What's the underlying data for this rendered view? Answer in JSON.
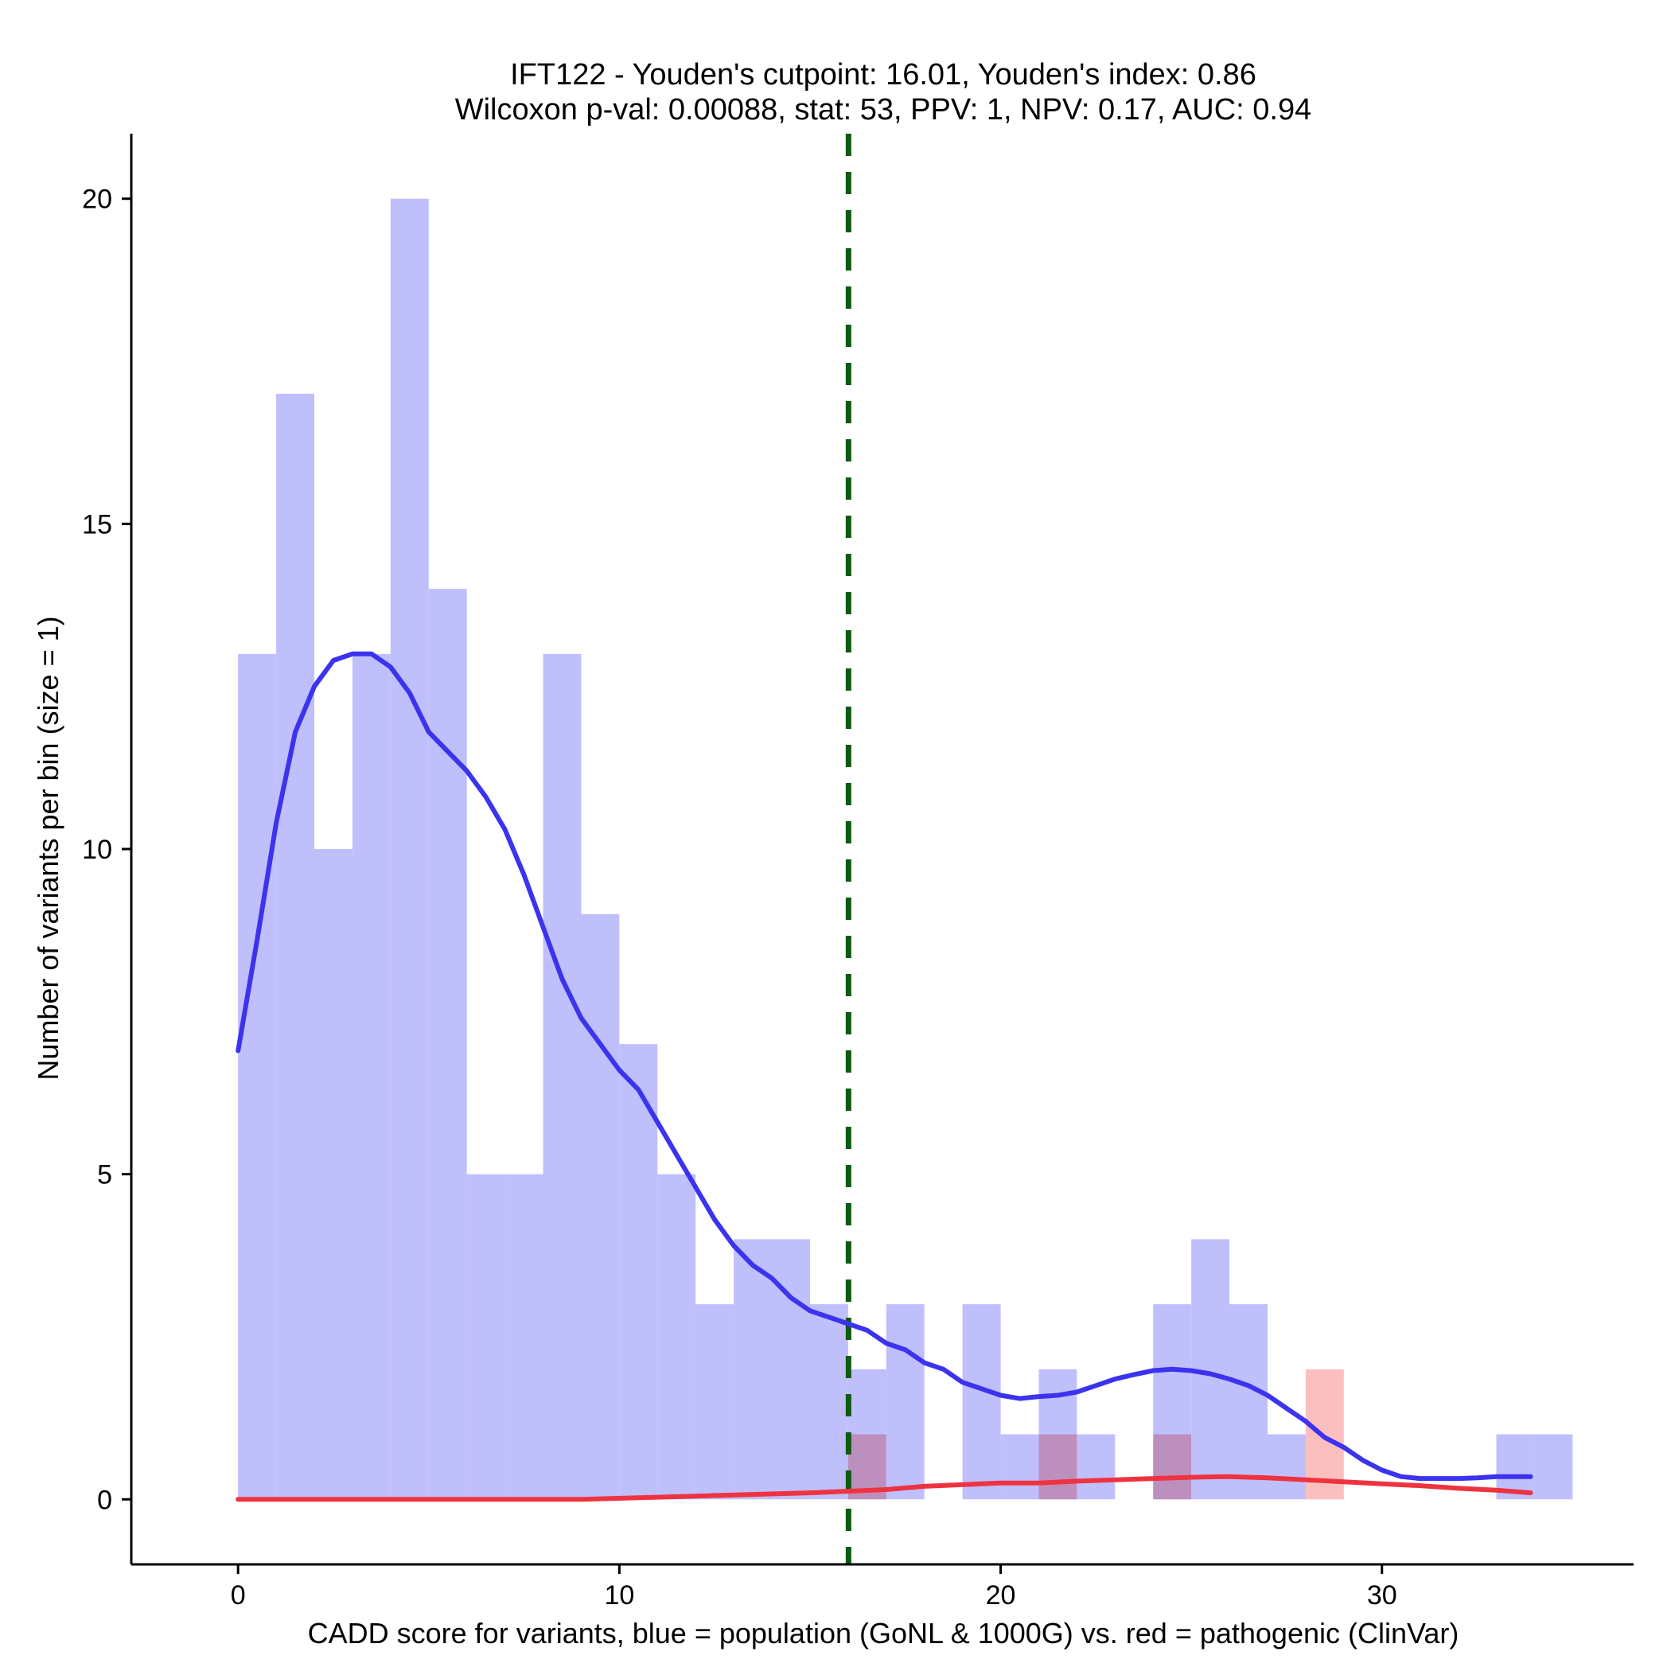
{
  "chart_data": {
    "type": "bar",
    "title_line1": "IFT122 - Youden's cutpoint: 16.01, Youden's index: 0.86",
    "title_line2": "Wilcoxon p-val: 0.00088, stat: 53, PPV: 1, NPV: 0.17, AUC: 0.94",
    "xlabel": "CADD score for variants, blue = population (GoNL & 1000G) vs. red = pathogenic (ClinVar)",
    "ylabel": "Number of variants per bin (size = 1)",
    "xlim": [
      -2.8,
      36.6
    ],
    "ylim": [
      -1,
      21
    ],
    "xticks": [
      0,
      10,
      20,
      30
    ],
    "yticks": [
      0,
      5,
      10,
      15,
      20
    ],
    "bin_size": 1,
    "cutpoint": 16.01,
    "colors": {
      "population_bar": "#bfbffc",
      "pathogenic_bar": "#fcbfbf",
      "population_line": "#3b33ee",
      "pathogenic_line": "#ee3340",
      "cutpoint_line": "#0d5a10"
    },
    "series": [
      {
        "name": "population",
        "bins": [
          {
            "x0": 0,
            "v": 13
          },
          {
            "x0": 1,
            "v": 17
          },
          {
            "x0": 2,
            "v": 10
          },
          {
            "x0": 3,
            "v": 13
          },
          {
            "x0": 4,
            "v": 20
          },
          {
            "x0": 5,
            "v": 14
          },
          {
            "x0": 6,
            "v": 5
          },
          {
            "x0": 7,
            "v": 5
          },
          {
            "x0": 8,
            "v": 13
          },
          {
            "x0": 9,
            "v": 9
          },
          {
            "x0": 10,
            "v": 7
          },
          {
            "x0": 11,
            "v": 5
          },
          {
            "x0": 12,
            "v": 3
          },
          {
            "x0": 13,
            "v": 4
          },
          {
            "x0": 14,
            "v": 4
          },
          {
            "x0": 15,
            "v": 3
          },
          {
            "x0": 16,
            "v": 2
          },
          {
            "x0": 17,
            "v": 3
          },
          {
            "x0": 19,
            "v": 3
          },
          {
            "x0": 20,
            "v": 1
          },
          {
            "x0": 21,
            "v": 2
          },
          {
            "x0": 22,
            "v": 1
          },
          {
            "x0": 24,
            "v": 3
          },
          {
            "x0": 25,
            "v": 4
          },
          {
            "x0": 26,
            "v": 3
          },
          {
            "x0": 27,
            "v": 1
          },
          {
            "x0": 33,
            "v": 1
          },
          {
            "x0": 34,
            "v": 1
          }
        ],
        "density_curve": [
          [
            0.0,
            6.9
          ],
          [
            0.5,
            8.6
          ],
          [
            1.0,
            10.4
          ],
          [
            1.5,
            11.8
          ],
          [
            2.0,
            12.5
          ],
          [
            2.5,
            12.9
          ],
          [
            3.0,
            13.0
          ],
          [
            3.5,
            13.0
          ],
          [
            4.0,
            12.8
          ],
          [
            4.5,
            12.4
          ],
          [
            5.0,
            11.8
          ],
          [
            5.5,
            11.5
          ],
          [
            6.0,
            11.2
          ],
          [
            6.5,
            10.8
          ],
          [
            7.0,
            10.3
          ],
          [
            7.5,
            9.6
          ],
          [
            8.0,
            8.8
          ],
          [
            8.5,
            8.0
          ],
          [
            9.0,
            7.4
          ],
          [
            9.5,
            7.0
          ],
          [
            10.0,
            6.6
          ],
          [
            10.5,
            6.3
          ],
          [
            11.0,
            5.8
          ],
          [
            11.5,
            5.3
          ],
          [
            12.0,
            4.8
          ],
          [
            12.5,
            4.3
          ],
          [
            13.0,
            3.9
          ],
          [
            13.5,
            3.6
          ],
          [
            14.0,
            3.4
          ],
          [
            14.5,
            3.1
          ],
          [
            15.0,
            2.9
          ],
          [
            15.5,
            2.8
          ],
          [
            16.0,
            2.7
          ],
          [
            16.5,
            2.6
          ],
          [
            17.0,
            2.4
          ],
          [
            17.5,
            2.3
          ],
          [
            18.0,
            2.1
          ],
          [
            18.5,
            2.0
          ],
          [
            19.0,
            1.8
          ],
          [
            19.5,
            1.7
          ],
          [
            20.0,
            1.6
          ],
          [
            20.5,
            1.55
          ],
          [
            21.0,
            1.58
          ],
          [
            21.5,
            1.6
          ],
          [
            22.0,
            1.65
          ],
          [
            22.5,
            1.75
          ],
          [
            23.0,
            1.85
          ],
          [
            23.5,
            1.92
          ],
          [
            24.0,
            1.98
          ],
          [
            24.5,
            2.0
          ],
          [
            25.0,
            1.98
          ],
          [
            25.5,
            1.93
          ],
          [
            26.0,
            1.85
          ],
          [
            26.5,
            1.75
          ],
          [
            27.0,
            1.6
          ],
          [
            27.5,
            1.4
          ],
          [
            28.0,
            1.2
          ],
          [
            28.5,
            0.95
          ],
          [
            29.0,
            0.8
          ],
          [
            29.5,
            0.6
          ],
          [
            30.0,
            0.45
          ],
          [
            30.5,
            0.35
          ],
          [
            31.0,
            0.32
          ],
          [
            31.5,
            0.32
          ],
          [
            32.0,
            0.32
          ],
          [
            32.5,
            0.33
          ],
          [
            33.0,
            0.35
          ],
          [
            33.5,
            0.35
          ],
          [
            33.9,
            0.35
          ]
        ]
      },
      {
        "name": "pathogenic",
        "bins": [
          {
            "x0": 16,
            "v": 1
          },
          {
            "x0": 21,
            "v": 1
          },
          {
            "x0": 24,
            "v": 1
          },
          {
            "x0": 28,
            "v": 2
          }
        ],
        "density_curve": [
          [
            0.0,
            0.0
          ],
          [
            5.0,
            0.0
          ],
          [
            9.0,
            0.0
          ],
          [
            12.0,
            0.05
          ],
          [
            15.0,
            0.1
          ],
          [
            17.0,
            0.15
          ],
          [
            18.0,
            0.2
          ],
          [
            20.0,
            0.25
          ],
          [
            21.0,
            0.25
          ],
          [
            22.0,
            0.28
          ],
          [
            23.0,
            0.3
          ],
          [
            24.0,
            0.32
          ],
          [
            25.0,
            0.34
          ],
          [
            26.0,
            0.35
          ],
          [
            27.0,
            0.33
          ],
          [
            28.0,
            0.3
          ],
          [
            29.0,
            0.27
          ],
          [
            30.0,
            0.24
          ],
          [
            31.0,
            0.21
          ],
          [
            32.0,
            0.17
          ],
          [
            33.0,
            0.14
          ],
          [
            33.9,
            0.1
          ]
        ]
      }
    ]
  }
}
